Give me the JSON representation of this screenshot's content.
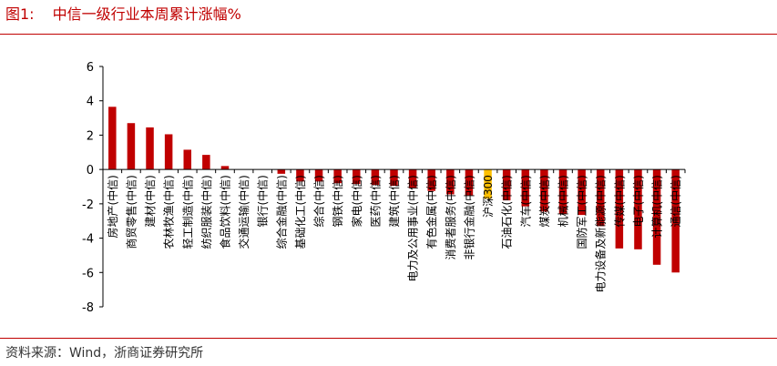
{
  "figure": {
    "number": "图1:",
    "title": "中信一级行业本周累计涨幅%"
  },
  "source": "资料来源：Wind，浙商证券研究所",
  "colors": {
    "bar": "#c00000",
    "highlight": "#ffc000",
    "rule": "#c00000"
  },
  "chart_data": {
    "type": "bar",
    "title": "",
    "xlabel": "",
    "ylabel": "",
    "ylim": [
      -8,
      6
    ],
    "yticks": [
      6,
      4,
      2,
      0,
      -2,
      -4,
      -6,
      -8
    ],
    "grid": false,
    "legend": "none",
    "highlight_category": "沪深300",
    "categories": [
      "房地产(中信)",
      "商贸零售(中信)",
      "建材(中信)",
      "农林牧渔(中信)",
      "轻工制造(中信)",
      "纺织服装(中信)",
      "食品饮料(中信)",
      "交通运输(中信)",
      "银行(中信)",
      "综合金融(中信)",
      "基础化工(中信)",
      "综合(中信)",
      "钢铁(中信)",
      "家电(中信)",
      "医药(中信)",
      "建筑(中信)",
      "电力及公用事业(中信)",
      "有色金属(中信)",
      "消费者服务(中信)",
      "非银行金融(中信)",
      "沪深300",
      "石油石化(中信)",
      "汽车(中信)",
      "煤炭(中信)",
      "机械(中信)",
      "国防军工(中信)",
      "电力设备及新能源(中信)",
      "传媒(中信)",
      "电子(中信)",
      "计算机(中信)",
      "通信(中信)"
    ],
    "values": [
      3.65,
      2.7,
      2.45,
      2.05,
      1.15,
      0.85,
      0.2,
      0.0,
      0.0,
      -0.25,
      -0.7,
      -0.7,
      -0.8,
      -0.85,
      -0.9,
      -0.95,
      -1.1,
      -1.25,
      -1.45,
      -1.5,
      -1.7,
      -1.8,
      -2.15,
      -2.45,
      -2.6,
      -2.65,
      -3.3,
      -4.6,
      -4.65,
      -5.55,
      -6.0
    ]
  }
}
